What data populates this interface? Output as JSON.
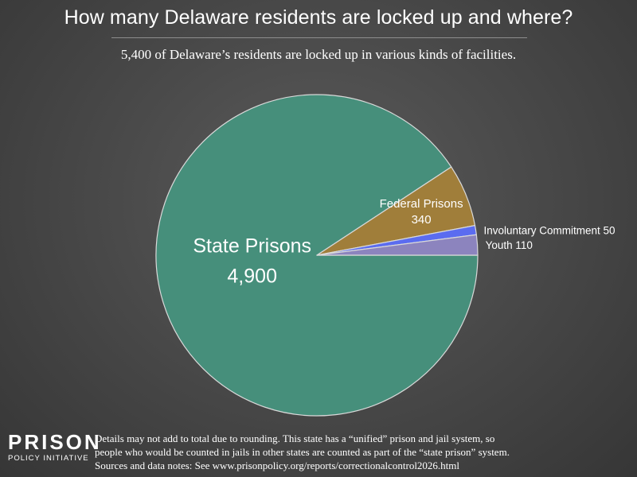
{
  "title": "How many Delaware residents are locked up and where?",
  "subtitle": "5,400 of Delaware’s residents are locked up in various kinds of facilities.",
  "colors": {
    "state_prisons": "#468f7b",
    "federal_prisons": "#a07e3a",
    "youth": "#8c84be",
    "involuntary_commitment": "#5b6cf0",
    "background": "#4a4a4a",
    "label_text": "#ffffff"
  },
  "chart_data": {
    "type": "pie",
    "title": "How many Delaware residents are locked up and where?",
    "subtitle": "5,400 of Delaware’s residents are locked up in various kinds of facilities.",
    "total": 5400,
    "slices": [
      {
        "name": "State Prisons",
        "value": 4900,
        "value_label": "4,900",
        "color": "#468f7b",
        "label_style": "inside-large"
      },
      {
        "name": "Federal Prisons",
        "value": 340,
        "value_label": "340",
        "color": "#a07e3a",
        "label_style": "inside-small"
      },
      {
        "name": "Involuntary Commitment",
        "value": 50,
        "value_label": "50",
        "color": "#5b6cf0",
        "label_style": "outside"
      },
      {
        "name": "Youth",
        "value": 110,
        "value_label": "110",
        "color": "#8c84be",
        "label_style": "outside"
      }
    ],
    "start": "east",
    "direction": "clockwise",
    "legend": "none"
  },
  "logo": {
    "top": "PRISON",
    "bottom": "POLICY INITIATIVE"
  },
  "footnote": {
    "line1": "Details may not add to total due to rounding. This state has a “unified” prison and jail system, so",
    "line2": "people who would be counted in jails in other states are counted as part of the “state prison” system.",
    "line3": "Sources and data notes: See www.prisonpolicy.org/reports/correctionalcontrol2026.html"
  }
}
